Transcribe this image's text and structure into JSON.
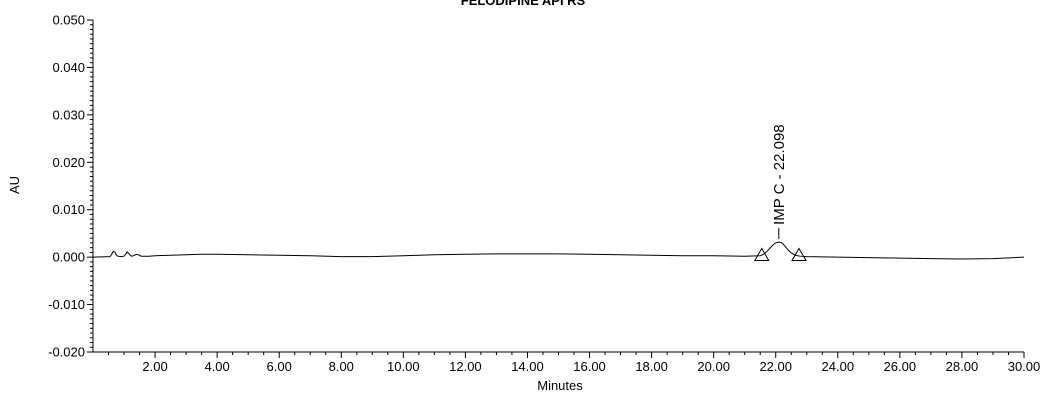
{
  "chart_data": {
    "type": "line",
    "title": "FELODIPINE API RS",
    "xlabel": "Minutes",
    "ylabel": "AU",
    "xlim": [
      0,
      30
    ],
    "ylim": [
      -0.02,
      0.05
    ],
    "x_ticks": [
      2,
      4,
      6,
      8,
      10,
      12,
      14,
      16,
      18,
      20,
      22,
      24,
      26,
      28,
      30
    ],
    "x_tick_labels": [
      "2.00",
      "4.00",
      "6.00",
      "8.00",
      "10.00",
      "12.00",
      "14.00",
      "16.00",
      "18.00",
      "20.00",
      "22.00",
      "24.00",
      "26.00",
      "28.00",
      "30.00"
    ],
    "y_ticks": [
      -0.02,
      -0.01,
      0,
      0.01,
      0.02,
      0.03,
      0.04,
      0.05
    ],
    "y_tick_labels": [
      "-0.020",
      "-0.010",
      "0.000",
      "0.010",
      "0.020",
      "0.030",
      "0.040",
      "0.050"
    ],
    "grid": false,
    "series": [
      {
        "x": [
          0,
          0.55,
          0.6,
          0.65,
          0.7,
          0.75,
          0.8,
          0.9,
          1.0,
          1.05,
          1.1,
          1.15,
          1.2,
          1.25,
          1.3,
          1.4,
          1.5,
          1.55,
          1.6,
          1.7,
          1.8,
          2.0,
          2.5,
          3.0,
          3.5,
          4.0,
          5.0,
          6.0,
          7.0,
          8.0,
          8.5,
          9.0,
          10.0,
          11.0,
          12.0,
          13.0,
          14.0,
          15.0,
          16.0,
          17.0,
          18.0,
          19.0,
          20.0,
          21.0,
          21.5,
          21.6,
          21.7,
          21.8,
          21.9,
          22.0,
          22.098,
          22.2,
          22.3,
          22.4,
          22.5,
          22.6,
          22.7,
          22.8,
          23.0,
          24.0,
          25.0,
          26.0,
          27.0,
          28.0,
          29.0,
          30.0
        ],
        "y": [
          0.0,
          0.0001,
          0.0006,
          0.0012,
          0.0011,
          0.0005,
          0.0002,
          0.0001,
          0.0002,
          0.0006,
          0.0011,
          0.0008,
          0.0004,
          0.0002,
          0.0003,
          0.0006,
          0.0004,
          0.0002,
          0.0002,
          0.0002,
          0.0002,
          0.0003,
          0.0004,
          0.0005,
          0.0006,
          0.0006,
          0.0005,
          0.0004,
          0.0003,
          0.0001,
          0.0001,
          0.0001,
          0.0003,
          0.0005,
          0.0006,
          0.0007,
          0.0007,
          0.0007,
          0.0006,
          0.0005,
          0.0004,
          0.0003,
          0.0003,
          0.0002,
          0.0003,
          0.0006,
          0.0011,
          0.0018,
          0.0025,
          0.003,
          0.0032,
          0.003,
          0.0023,
          0.0015,
          0.0009,
          0.0005,
          0.0003,
          0.0002,
          0.0001,
          0.0,
          -0.0001,
          -0.0002,
          -0.0003,
          -0.0004,
          -0.0003,
          0.0
        ]
      }
    ],
    "peak_labels": [
      {
        "text": "IMP C - 22.098",
        "x": 22.098,
        "y": 0.0032
      }
    ],
    "baseline_markers": [
      {
        "x": 21.55,
        "y": -0.0005
      },
      {
        "x": 22.75,
        "y": -0.0005
      }
    ]
  }
}
